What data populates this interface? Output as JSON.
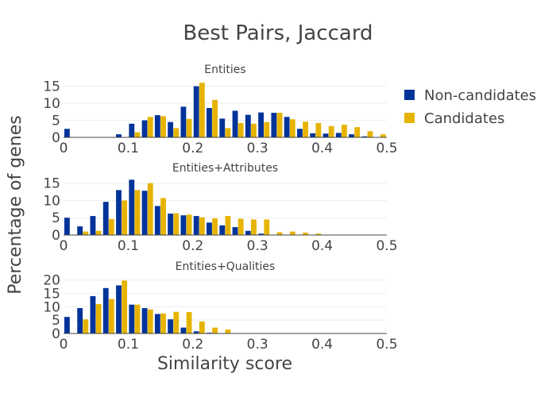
{
  "chart_data": {
    "type": "bar",
    "title": "Best Pairs, Jaccard",
    "xlabel": "Similarity score",
    "ylabel": "Percentage of genes",
    "legend_position": "top-right",
    "grid": true,
    "legend": [
      {
        "name": "Non-candidates",
        "color": "#003399"
      },
      {
        "name": "Candidates",
        "color": "#e6b400"
      }
    ],
    "panels": [
      {
        "subtitle": "Entities",
        "xlim": [
          0,
          0.5
        ],
        "ylim": [
          0,
          17
        ],
        "yticks": [
          0,
          5,
          10,
          15
        ],
        "xticks": [
          "0",
          "0.1",
          "0.2",
          "0.3",
          "0.4",
          "0.5"
        ],
        "x": [
          0.0,
          0.02,
          0.04,
          0.06,
          0.08,
          0.1,
          0.12,
          0.14,
          0.16,
          0.18,
          0.2,
          0.22,
          0.24,
          0.26,
          0.28,
          0.3,
          0.32,
          0.34,
          0.36,
          0.38,
          0.4,
          0.42,
          0.44,
          0.46,
          0.48
        ],
        "series": [
          {
            "name": "Non-candidates",
            "values": [
              2.5,
              0,
              0,
              0.1,
              0.9,
              4.0,
              5.0,
              6.5,
              4.5,
              9.0,
              15.0,
              8.6,
              5.5,
              7.8,
              6.6,
              7.3,
              7.2,
              6.0,
              2.5,
              1.2,
              1.1,
              1.3,
              0.9,
              0.3,
              0.1
            ]
          },
          {
            "name": "Candidates",
            "values": [
              0,
              0,
              0,
              0,
              0,
              1.5,
              6.0,
              6.2,
              2.7,
              5.4,
              16.0,
              11.0,
              2.7,
              4.2,
              4.0,
              4.5,
              7.2,
              5.3,
              4.6,
              4.2,
              3.3,
              3.7,
              3.0,
              1.8,
              0.9
            ]
          }
        ]
      },
      {
        "subtitle": "Entities+Attributes",
        "xlim": [
          0,
          0.5
        ],
        "ylim": [
          0,
          17
        ],
        "yticks": [
          0,
          5,
          10,
          15
        ],
        "xticks": [
          "0",
          "0.1",
          "0.2",
          "0.3",
          "0.4",
          "0.5"
        ],
        "x": [
          0.0,
          0.02,
          0.04,
          0.06,
          0.08,
          0.1,
          0.12,
          0.14,
          0.16,
          0.18,
          0.2,
          0.22,
          0.24,
          0.26,
          0.28,
          0.3,
          0.32,
          0.34,
          0.36,
          0.38,
          0.4,
          0.42,
          0.44,
          0.46,
          0.48
        ],
        "series": [
          {
            "name": "Non-candidates",
            "values": [
              5.0,
              2.5,
              5.5,
              9.6,
              13.0,
              16.0,
              12.8,
              8.4,
              6.2,
              5.7,
              5.5,
              3.6,
              2.8,
              2.3,
              1.2,
              0.4,
              0,
              0,
              0,
              0,
              0,
              0,
              0,
              0,
              0
            ]
          },
          {
            "name": "Candidates",
            "values": [
              0,
              1.0,
              1.2,
              4.6,
              10.0,
              13.0,
              15.0,
              10.7,
              6.3,
              5.9,
              5.1,
              4.8,
              5.5,
              4.7,
              4.5,
              4.5,
              0.8,
              1.0,
              0.7,
              0.4,
              0,
              0,
              0,
              0,
              0
            ]
          }
        ]
      },
      {
        "subtitle": "Entities+Qualities",
        "xlim": [
          0,
          0.5
        ],
        "ylim": [
          0,
          22
        ],
        "yticks": [
          0,
          5,
          10,
          15,
          20
        ],
        "xticks": [
          "0",
          "0.1",
          "0.2",
          "0.3",
          "0.4",
          "0.5"
        ],
        "x": [
          0.0,
          0.02,
          0.04,
          0.06,
          0.08,
          0.1,
          0.12,
          0.14,
          0.16,
          0.18,
          0.2,
          0.22,
          0.24,
          0.26,
          0.28,
          0.3,
          0.32,
          0.34,
          0.36,
          0.38,
          0.4,
          0.42,
          0.44,
          0.46,
          0.48
        ],
        "series": [
          {
            "name": "Non-candidates",
            "values": [
              6.2,
              9.5,
              14.0,
              17.0,
              18.0,
              10.8,
              9.5,
              7.3,
              5.3,
              2.2,
              0.8,
              0.3,
              0,
              0,
              0,
              0,
              0,
              0,
              0,
              0,
              0,
              0,
              0,
              0,
              0
            ]
          },
          {
            "name": "Candidates",
            "values": [
              0,
              5.3,
              11.0,
              12.9,
              19.8,
              10.8,
              9.0,
              7.5,
              8.1,
              8.0,
              4.5,
              2.2,
              1.5,
              0,
              0,
              0,
              0,
              0,
              0,
              0,
              0,
              0,
              0,
              0,
              0
            ]
          }
        ]
      }
    ]
  }
}
